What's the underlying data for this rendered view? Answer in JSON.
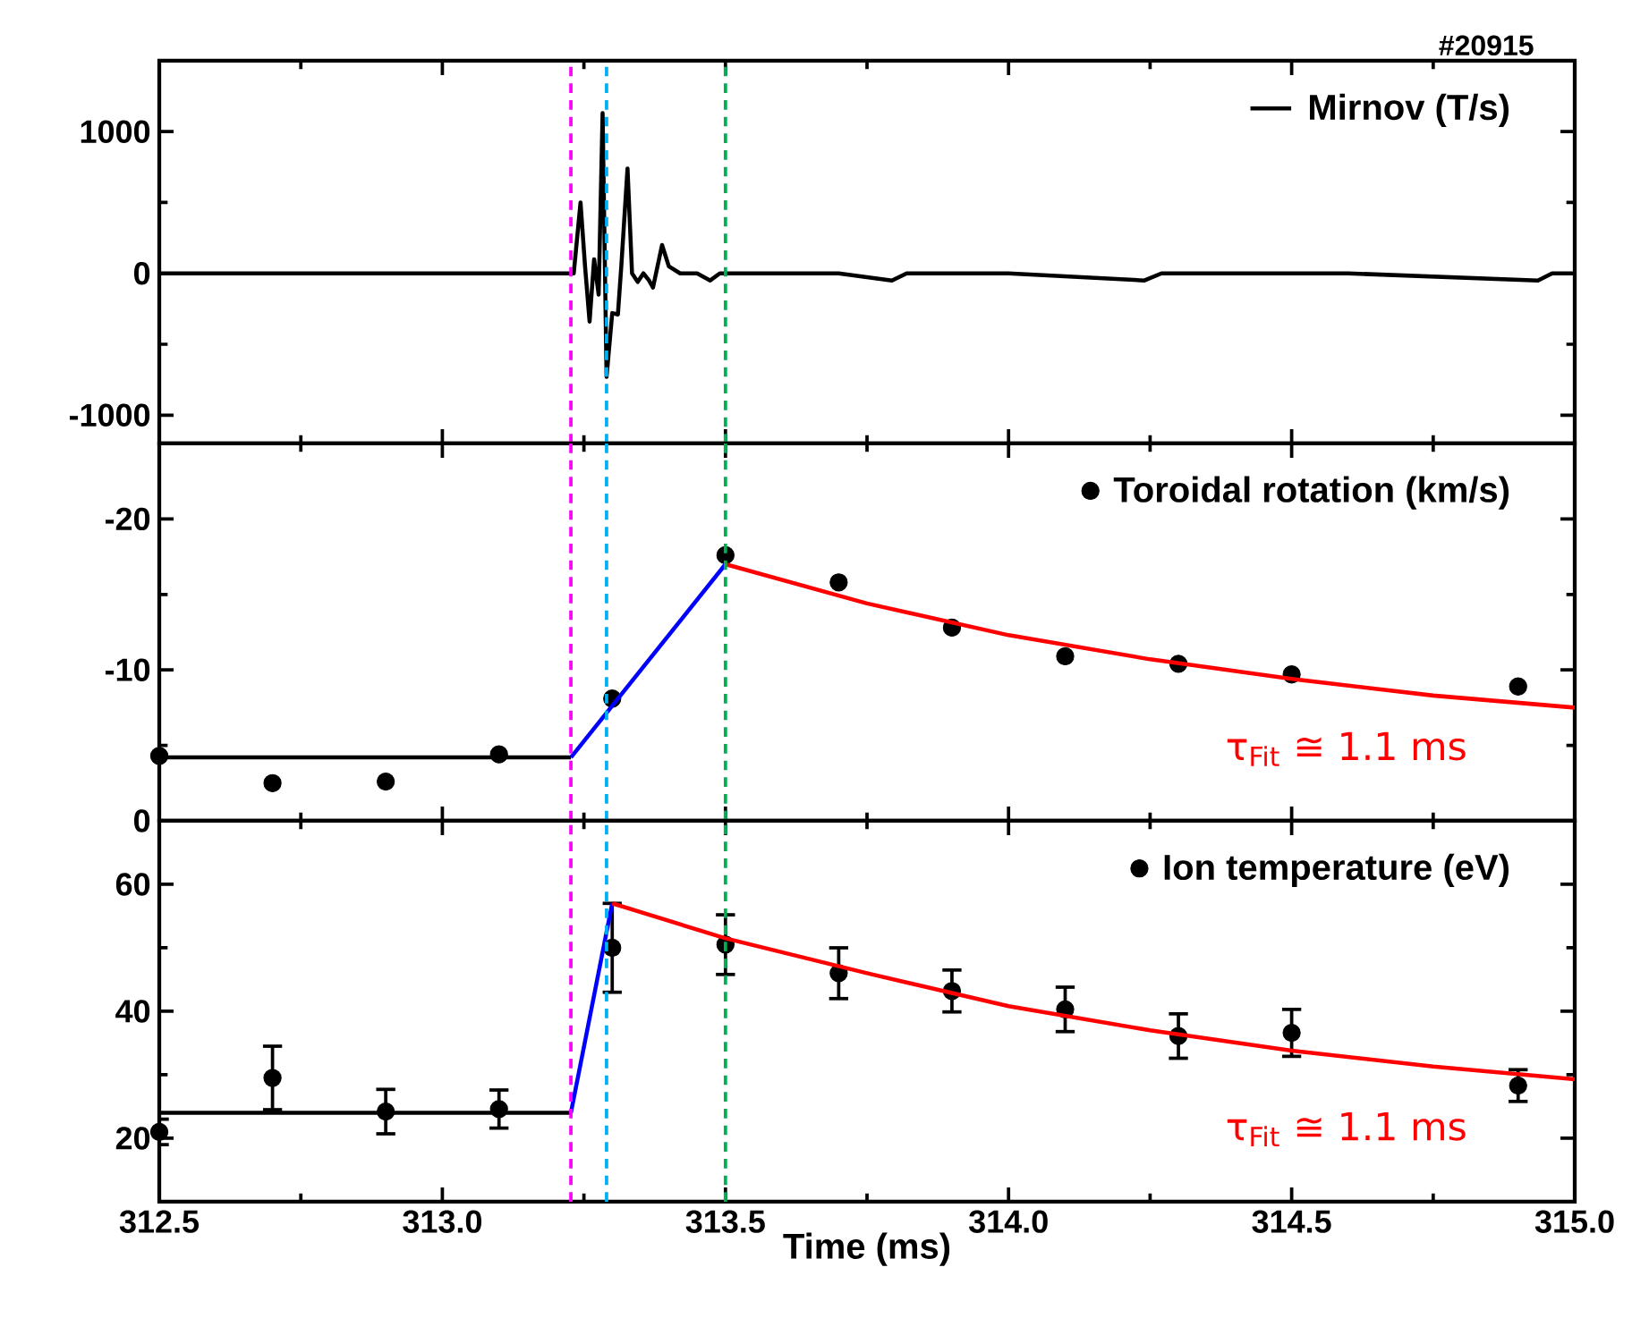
{
  "chart_data": [
    {
      "type": "line",
      "annotations": [
        "#20915"
      ],
      "xlim": [
        312.5,
        315.0
      ],
      "xticks": [
        312.5,
        313.0,
        313.5,
        314.0,
        314.5,
        315.0
      ],
      "ylim": [
        -1200,
        1500
      ],
      "yticks": [
        -1000,
        0,
        1000
      ],
      "tick_labels": "y",
      "legend": "top right",
      "series": [
        {
          "name": "Mirnov (T/s)",
          "color": "#000000",
          "x": [
            312.5,
            312.6,
            312.754,
            312.78,
            312.81,
            312.85,
            313.0,
            313.1,
            313.219,
            313.232,
            313.244,
            313.252,
            313.26,
            313.268,
            313.276,
            313.283,
            313.29,
            313.3,
            313.31,
            313.316,
            313.327,
            313.335,
            313.345,
            313.355,
            313.365,
            313.372,
            313.388,
            313.4,
            313.42,
            313.45,
            313.473,
            313.49,
            313.55,
            313.609,
            313.7,
            313.794,
            313.82,
            314.0,
            314.24,
            314.27,
            314.6,
            314.935,
            314.96,
            315.0
          ],
          "values": [
            0,
            0,
            0,
            0,
            0,
            0,
            0,
            0,
            0,
            0,
            500,
            50,
            -340,
            100,
            -150,
            1130,
            -730,
            -280,
            -290,
            50,
            740,
            0,
            -60,
            0,
            -50,
            -100,
            200,
            50,
            0,
            0,
            -50,
            0,
            0,
            0,
            0,
            -50,
            0,
            0,
            -50,
            0,
            0,
            -50,
            0,
            0
          ]
        }
      ],
      "ref_lines": [
        {
          "axis": "x",
          "value": 313.227,
          "color": "#ff00ff",
          "line_style": "dashed"
        },
        {
          "axis": "x",
          "value": 313.29,
          "color": "#00b0f0",
          "line_style": "dashed"
        },
        {
          "axis": "x",
          "value": 313.5,
          "color": "#00b050",
          "line_style": "dashed"
        }
      ]
    },
    {
      "type": "scatter",
      "marker": "circle",
      "annotations": [
        "τ$_{Fit}$ ≅ 1.1 ms"
      ],
      "xlim": [
        312.5,
        315.0
      ],
      "xticks": [
        312.5,
        313.0,
        313.5,
        314.0,
        314.5,
        315.0
      ],
      "ylim": [
        0,
        -25
      ],
      "yticks": [
        -20,
        -10,
        0
      ],
      "tick_labels": "y",
      "legend": "top right",
      "series": [
        {
          "name": "Toroidal rotation (km/s)",
          "color": "#000000",
          "x": [
            312.5,
            312.7,
            312.9,
            313.1,
            313.3,
            313.5,
            313.7,
            313.9,
            314.1,
            314.3,
            314.5,
            314.9
          ],
          "values": [
            -4.3,
            -2.5,
            -2.6,
            -4.4,
            -8.1,
            -17.6,
            -15.8,
            -12.8,
            -10.9,
            -10.4,
            -9.7,
            -8.9
          ]
        },
        {
          "type": "line",
          "marker": "none",
          "color": "#000000",
          "x": [
            312.5,
            313.227
          ],
          "values": [
            -4.2,
            -4.2
          ]
        },
        {
          "type": "line",
          "marker": "none",
          "color": "#0000ff",
          "x": [
            313.227,
            313.5
          ],
          "values": [
            -4.2,
            -17.0
          ]
        },
        {
          "type": "line",
          "marker": "none",
          "color": "#ff0000",
          "x": [
            313.5,
            313.75,
            314.0,
            314.25,
            314.5,
            314.75,
            315.0
          ],
          "values": [
            -17.0,
            -14.4,
            -12.3,
            -10.7,
            -9.4,
            -8.3,
            -7.5
          ]
        }
      ],
      "ref_lines": [
        {
          "axis": "x",
          "value": 313.227,
          "color": "#ff00ff",
          "line_style": "dashed"
        },
        {
          "axis": "x",
          "value": 313.29,
          "color": "#00b0f0",
          "line_style": "dashed"
        },
        {
          "axis": "x",
          "value": 313.5,
          "color": "#00b050",
          "line_style": "dashed"
        }
      ]
    },
    {
      "type": "scatter",
      "marker": "circle",
      "annotations": [
        "τ$_{Fit}$ ≅ 1.1 ms"
      ],
      "xlabel": "Time (ms)",
      "xlim": [
        312.5,
        315.0
      ],
      "xticks": [
        312.5,
        {
          "value": 313.0,
          "label": "313.0"
        },
        313.5,
        {
          "value": 314.0,
          "label": "314.0"
        },
        314.5,
        {
          "value": 315.0,
          "label": "315.0"
        }
      ],
      "ylim": [
        10,
        70
      ],
      "yticks": [
        20,
        40,
        60
      ],
      "legend": "top right",
      "series": [
        {
          "name": "Ion temperature (eV)",
          "color": "#000000",
          "x": [
            312.5,
            312.7,
            312.9,
            313.1,
            313.3,
            313.5,
            313.7,
            313.9,
            314.1,
            314.3,
            314.5,
            314.9
          ],
          "values": [
            21,
            29.5,
            24.2,
            24.6,
            50,
            50.5,
            46,
            43.2,
            40.3,
            36.1,
            36.6,
            28.3
          ],
          "errors": [
            2,
            5,
            3.5,
            3,
            7,
            4.7,
            4,
            3.3,
            3.5,
            3.5,
            3.7,
            2.5
          ]
        },
        {
          "type": "line",
          "marker": "none",
          "color": "#000000",
          "x": [
            312.5,
            313.227
          ],
          "values": [
            24,
            24
          ]
        },
        {
          "type": "line",
          "marker": "none",
          "color": "#0000ff",
          "x": [
            313.227,
            313.3
          ],
          "values": [
            24,
            57
          ]
        },
        {
          "type": "line",
          "marker": "none",
          "color": "#ff0000",
          "x": [
            313.3,
            313.5,
            313.75,
            314.0,
            314.25,
            314.5,
            314.75,
            315.0
          ],
          "values": [
            57,
            51.5,
            46,
            40.8,
            37,
            33.8,
            31.3,
            29.3
          ]
        }
      ],
      "ref_lines": [
        {
          "axis": "x",
          "value": 313.227,
          "color": "#ff00ff",
          "line_style": "dashed"
        },
        {
          "axis": "x",
          "value": 313.29,
          "color": "#00b0f0",
          "line_style": "dashed"
        },
        {
          "axis": "x",
          "value": 313.5,
          "color": "#00b050",
          "line_style": "dashed"
        }
      ]
    }
  ]
}
